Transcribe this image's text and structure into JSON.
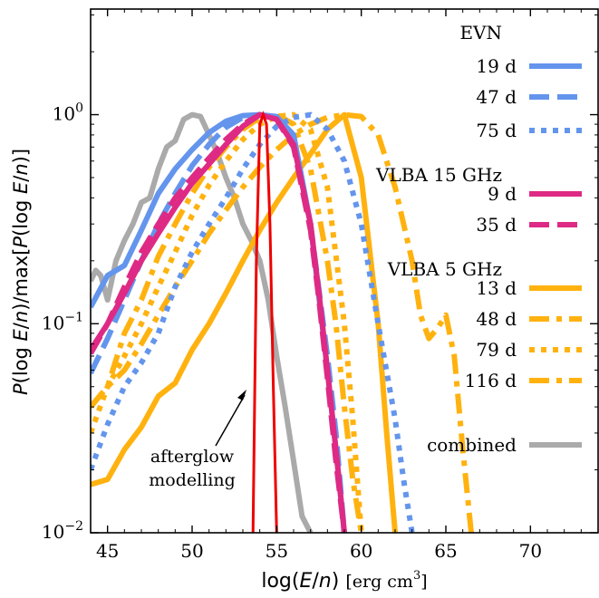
{
  "chart_data": {
    "type": "line",
    "xlabel": "log(E/n) [erg cm3]",
    "ylabel": "P(log E/n)/max[P(log E/n)]",
    "xlim": [
      44,
      74
    ],
    "ylim": [
      0.01,
      3.2
    ],
    "yscale": "log",
    "x_ticks": [
      45,
      50,
      55,
      60,
      65,
      70
    ],
    "x_tick_labels": [
      "45",
      "50",
      "55",
      "60",
      "65",
      "70"
    ],
    "y_ticks": [
      0.01,
      0.1,
      1
    ],
    "y_tick_labels": [
      "10",
      "10",
      "10"
    ],
    "y_tick_exponents": [
      "−2",
      "−1",
      "0"
    ],
    "grid": false,
    "legend_position": "right",
    "legend_groups": [
      {
        "title": "EVN",
        "entries": [
          "19 d",
          "47 d",
          "75 d"
        ]
      },
      {
        "title": "VLBA 15 GHz",
        "entries": [
          "9 d",
          "35 d"
        ]
      },
      {
        "title": "VLBA 5 GHz",
        "entries": [
          "13 d",
          "48 d",
          "79 d",
          "116 d"
        ]
      },
      {
        "title": "",
        "entries": [
          "combined"
        ]
      }
    ],
    "annotation": {
      "text_line1": "afterglow",
      "text_line2": "modelling",
      "points_to": [
        53.2,
        0.048
      ]
    },
    "series": [
      {
        "name": "19 d",
        "group": "EVN",
        "color": "#6495ED",
        "style": "solid",
        "x": [
          44.0,
          45.0,
          46.0,
          47.0,
          48.0,
          49.0,
          50.0,
          51.0,
          52.0,
          53.0,
          54.0,
          55.0,
          56.0,
          57.0,
          58.0,
          58.5,
          59.0
        ],
        "y": [
          0.12,
          0.17,
          0.19,
          0.28,
          0.42,
          0.55,
          0.68,
          0.82,
          0.93,
          0.99,
          1.0,
          0.98,
          0.8,
          0.3,
          0.06,
          0.025,
          0.01
        ]
      },
      {
        "name": "47 d",
        "group": "EVN",
        "color": "#6495ED",
        "style": "dashed",
        "x": [
          44.0,
          45.0,
          46.0,
          47.0,
          48.0,
          49.0,
          50.0,
          51.0,
          52.0,
          53.0,
          54.0,
          55.0,
          56.0,
          57.0,
          58.0,
          58.5,
          59.0
        ],
        "y": [
          0.058,
          0.085,
          0.13,
          0.2,
          0.3,
          0.42,
          0.57,
          0.72,
          0.87,
          0.97,
          1.0,
          0.97,
          0.75,
          0.3,
          0.07,
          0.03,
          0.01
        ]
      },
      {
        "name": "75 d",
        "group": "EVN",
        "color": "#6495ED",
        "style": "dotted",
        "x": [
          44.0,
          45.0,
          46.0,
          47.0,
          48.0,
          49.0,
          50.0,
          51.0,
          52.0,
          53.0,
          54.0,
          55.0,
          56.0,
          57.0,
          58.0,
          59.0,
          60.0,
          61.0,
          62.0,
          62.5,
          63.0
        ],
        "y": [
          0.02,
          0.033,
          0.05,
          0.065,
          0.09,
          0.15,
          0.22,
          0.3,
          0.4,
          0.55,
          0.72,
          0.88,
          0.97,
          1.0,
          0.85,
          0.6,
          0.3,
          0.1,
          0.035,
          0.018,
          0.01
        ]
      },
      {
        "name": "9 d",
        "group": "VLBA 15 GHz",
        "color": "#DE2A84",
        "style": "solid",
        "x": [
          44.0,
          45.0,
          46.0,
          47.0,
          48.0,
          49.0,
          50.0,
          51.0,
          52.0,
          53.0,
          54.0,
          55.0,
          56.0,
          57.0,
          57.5,
          58.0,
          58.5,
          59.0
        ],
        "y": [
          0.075,
          0.1,
          0.14,
          0.2,
          0.27,
          0.36,
          0.47,
          0.58,
          0.72,
          0.88,
          1.0,
          0.95,
          0.72,
          0.3,
          0.14,
          0.06,
          0.025,
          0.01
        ]
      },
      {
        "name": "35 d",
        "group": "VLBA 15 GHz",
        "color": "#DE2A84",
        "style": "dashed",
        "x": [
          44.0,
          45.0,
          46.0,
          47.0,
          48.0,
          49.0,
          50.0,
          51.0,
          52.0,
          53.0,
          54.0,
          55.0,
          56.0,
          57.0,
          57.5,
          58.0,
          58.5,
          59.0
        ],
        "y": [
          0.072,
          0.1,
          0.15,
          0.22,
          0.3,
          0.4,
          0.5,
          0.62,
          0.76,
          0.9,
          1.0,
          0.95,
          0.7,
          0.28,
          0.13,
          0.055,
          0.022,
          0.01
        ]
      },
      {
        "name": "13 d",
        "group": "VLBA 5 GHz",
        "color": "#FFB20F",
        "style": "solid",
        "x": [
          44.0,
          45.0,
          46.0,
          47.0,
          48.0,
          49.0,
          50.0,
          51.0,
          52.0,
          53.0,
          54.0,
          55.0,
          56.0,
          57.0,
          58.0,
          59.0,
          60.0,
          61.0,
          61.5,
          62.0
        ],
        "y": [
          0.017,
          0.018,
          0.025,
          0.032,
          0.045,
          0.052,
          0.075,
          0.1,
          0.14,
          0.2,
          0.28,
          0.38,
          0.5,
          0.65,
          0.85,
          1.0,
          0.5,
          0.1,
          0.03,
          0.01
        ]
      },
      {
        "name": "48 d",
        "group": "VLBA 5 GHz",
        "color": "#FFB20F",
        "style": "dashdot",
        "x": [
          44.0,
          45.0,
          46.0,
          47.0,
          48.0,
          49.0,
          50.0,
          51.0,
          52.0,
          53.0,
          54.0,
          55.0,
          56.0,
          57.0,
          58.0,
          58.5,
          59.0,
          59.5,
          60.0
        ],
        "y": [
          0.04,
          0.05,
          0.09,
          0.13,
          0.21,
          0.3,
          0.42,
          0.56,
          0.7,
          0.85,
          0.97,
          1.0,
          0.9,
          0.55,
          0.2,
          0.1,
          0.04,
          0.018,
          0.01
        ]
      },
      {
        "name": "79 d",
        "group": "VLBA 5 GHz",
        "color": "#FFB20F",
        "style": "dotted",
        "x": [
          44.0,
          45.0,
          46.0,
          47.0,
          48.0,
          49.0,
          50.0,
          51.0,
          52.0,
          53.0,
          54.0,
          55.0,
          56.0,
          57.0,
          58.0,
          59.0,
          59.5,
          60.0
        ],
        "y": [
          0.03,
          0.05,
          0.07,
          0.1,
          0.15,
          0.22,
          0.33,
          0.46,
          0.6,
          0.76,
          0.9,
          0.98,
          1.0,
          0.85,
          0.45,
          0.1,
          0.035,
          0.01
        ]
      },
      {
        "name": "116 d",
        "group": "VLBA 5 GHz",
        "color": "#FFB20F",
        "style": "dashdot",
        "x": [
          44.0,
          45.0,
          46.0,
          47.0,
          48.0,
          49.0,
          50.0,
          51.0,
          52.0,
          53.0,
          54.0,
          55.0,
          56.0,
          57.0,
          58.0,
          59.0,
          60.0,
          61.0,
          62.0,
          63.0,
          63.5,
          64.0,
          64.5,
          65.0,
          65.5,
          66.0,
          66.5
        ],
        "y": [
          0.04,
          0.05,
          0.06,
          0.08,
          0.11,
          0.15,
          0.2,
          0.27,
          0.35,
          0.45,
          0.56,
          0.68,
          0.8,
          0.9,
          0.97,
          1.0,
          0.98,
          0.8,
          0.45,
          0.2,
          0.11,
          0.085,
          0.095,
          0.11,
          0.07,
          0.025,
          0.01
        ]
      },
      {
        "name": "combined",
        "group": "",
        "color": "#AAAAAA",
        "style": "solid",
        "x": [
          44.0,
          44.3,
          44.6,
          45.0,
          45.5,
          46.0,
          46.5,
          47.0,
          47.5,
          48.0,
          48.5,
          49.0,
          49.5,
          50.0,
          50.5,
          51.0,
          51.5,
          52.0,
          52.5,
          53.0,
          53.5,
          54.0,
          54.5,
          55.0,
          55.5,
          56.0,
          56.5,
          57.0
        ],
        "y": [
          0.16,
          0.18,
          0.17,
          0.13,
          0.2,
          0.25,
          0.3,
          0.38,
          0.4,
          0.55,
          0.7,
          0.75,
          0.95,
          1.0,
          0.98,
          0.8,
          0.65,
          0.5,
          0.4,
          0.3,
          0.25,
          0.2,
          0.13,
          0.07,
          0.04,
          0.022,
          0.012,
          0.01
        ]
      }
    ],
    "afterglow": {
      "color": "#EE0000",
      "x": [
        53.6,
        53.8,
        54.0,
        54.2,
        54.4,
        54.6,
        54.8,
        55.0
      ],
      "y": [
        0.01,
        0.2,
        0.9,
        1.0,
        0.9,
        0.3,
        0.05,
        0.01
      ]
    }
  }
}
